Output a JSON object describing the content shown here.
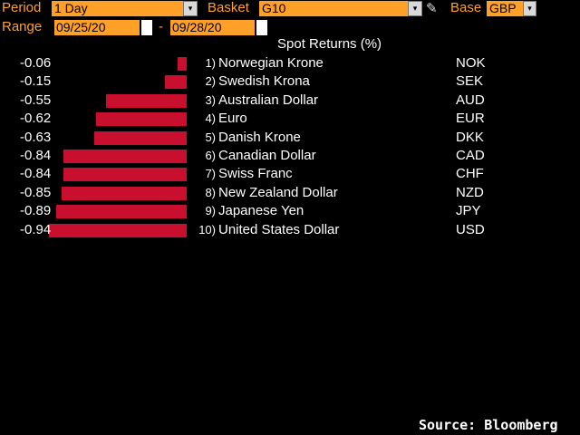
{
  "toolbar": {
    "period_label": "Period",
    "period_value": "1 Day",
    "basket_label": "Basket",
    "basket_value": "G10",
    "base_label": "Base",
    "base_value": "GBP",
    "range_label": "Range",
    "range_start": "09/25/20",
    "range_separator": "-",
    "range_end": "09/28/20",
    "dropdown_glyph": "▾",
    "pencil_glyph": "✎"
  },
  "header": {
    "title": "Spot Returns (%)"
  },
  "footer": {
    "source": "Source: Bloomberg"
  },
  "colors": {
    "accent": "#ffa028",
    "bar": "#c8102e",
    "text": "#ffffff",
    "background": "#000000"
  },
  "chart_data": {
    "type": "bar",
    "title": "Spot Returns (%)",
    "orientation": "horizontal",
    "categories": [
      "Norwegian Krone",
      "Swedish Krona",
      "Australian Dollar",
      "Euro",
      "Danish Krone",
      "Canadian Dollar",
      "Swiss Franc",
      "New Zealand Dollar",
      "Japanese Yen",
      "United States Dollar"
    ],
    "codes": [
      "NOK",
      "SEK",
      "AUD",
      "EUR",
      "DKK",
      "CAD",
      "CHF",
      "NZD",
      "JPY",
      "USD"
    ],
    "ranks": [
      "1)",
      "2)",
      "3)",
      "4)",
      "5)",
      "6)",
      "7)",
      "8)",
      "9)",
      "10)"
    ],
    "values": [
      -0.06,
      -0.15,
      -0.55,
      -0.62,
      -0.63,
      -0.84,
      -0.84,
      -0.85,
      -0.89,
      -0.94
    ],
    "value_labels": [
      "-0.06",
      "-0.15",
      "-0.55",
      "-0.62",
      "-0.63",
      "-0.84",
      "-0.84",
      "-0.85",
      "-0.89",
      "-0.94"
    ]
  }
}
